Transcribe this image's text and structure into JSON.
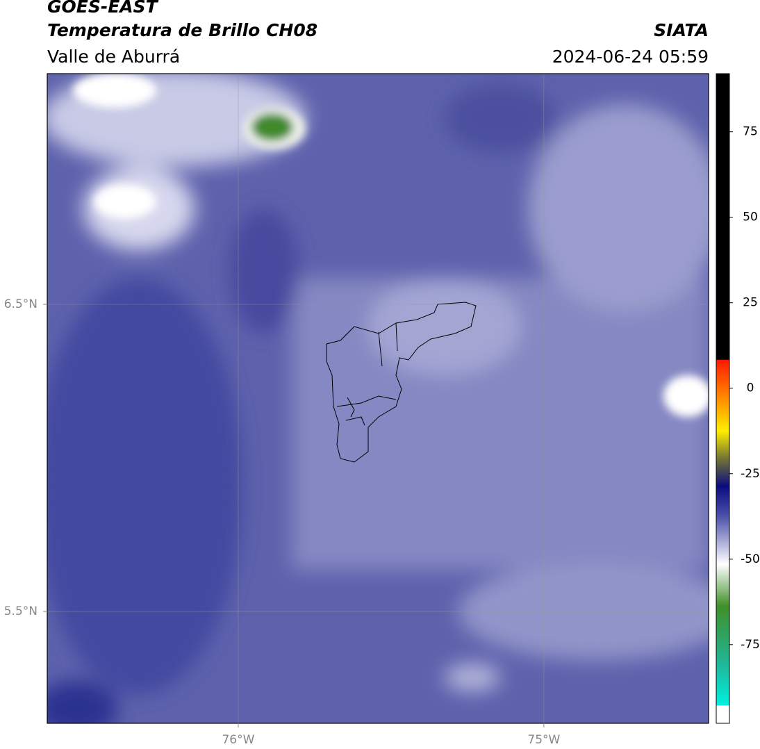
{
  "header": {
    "title": "GOES-EAST",
    "subtitle": "Temperatura de Brillo CH08",
    "source": "SIATA",
    "region": "Valle de Aburrá",
    "datetime": "2024-06-24 05:59"
  },
  "map": {
    "xlim": [
      -76.625,
      -74.461
    ],
    "ylim": [
      5.136,
      7.251
    ],
    "xticks": [
      {
        "value": -76,
        "label": "76°W"
      },
      {
        "value": -75,
        "label": "75°W"
      }
    ],
    "yticks": [
      {
        "value": 6.5,
        "label": "6.5°N"
      },
      {
        "value": 5.5,
        "label": "5.5°N"
      }
    ]
  },
  "colorbar": {
    "lim": [
      -98,
      92
    ],
    "ticks": [
      75,
      50,
      25,
      0,
      -25,
      -50,
      -75
    ]
  }
}
